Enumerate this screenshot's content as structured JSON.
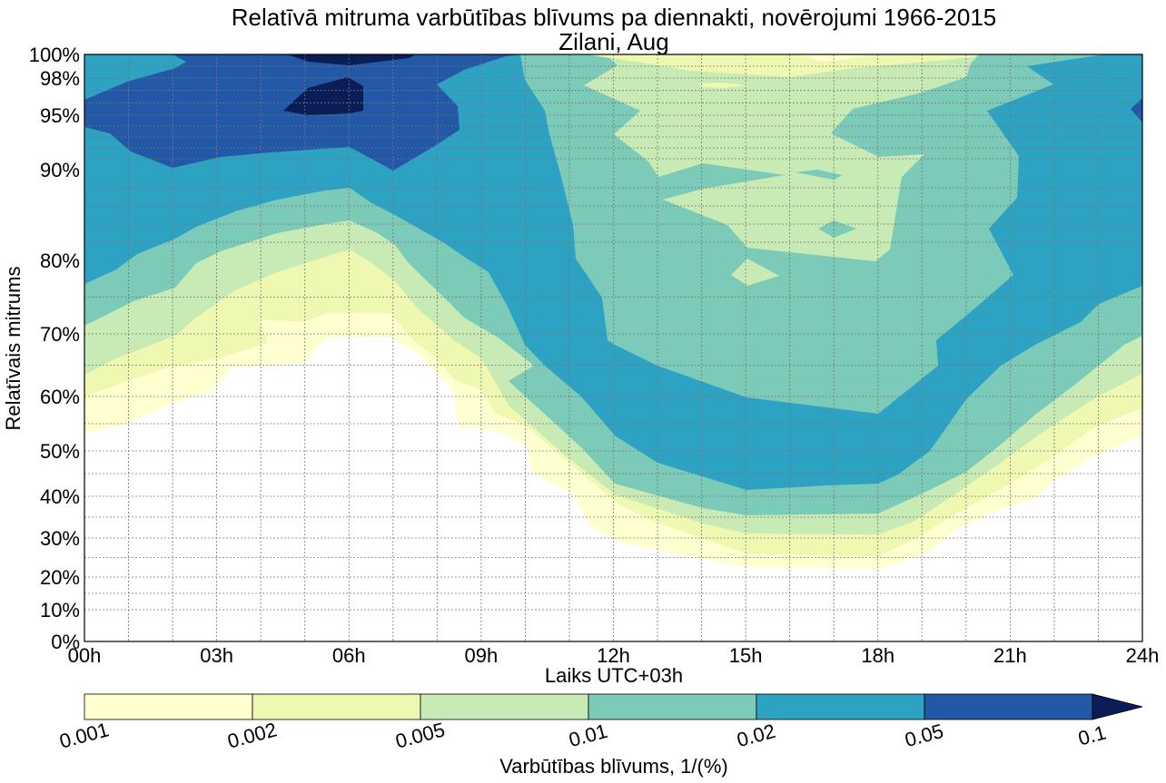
{
  "chart_data": {
    "type": "contour",
    "title": "Relatīvā mitruma varbūtības blīvums pa diennakti, novērojumi 1966-2015",
    "subtitle": "Zilani, Aug",
    "xlabel": "Laiks UTC+03h",
    "ylabel": "Relatīvais mitrums",
    "xlim": [
      0,
      24
    ],
    "ylim": [
      0,
      100
    ],
    "x_ticks": [
      {
        "value": 0,
        "label": "00h"
      },
      {
        "value": 3,
        "label": "03h"
      },
      {
        "value": 6,
        "label": "06h"
      },
      {
        "value": 9,
        "label": "09h"
      },
      {
        "value": 12,
        "label": "12h"
      },
      {
        "value": 15,
        "label": "15h"
      },
      {
        "value": 18,
        "label": "18h"
      },
      {
        "value": 21,
        "label": "21h"
      },
      {
        "value": 24,
        "label": "24h"
      }
    ],
    "y_ticks": [
      {
        "value": 100,
        "label": "100%"
      },
      {
        "value": 98,
        "label": "98%"
      },
      {
        "value": 95,
        "label": "95%"
      },
      {
        "value": 90,
        "label": "90%"
      },
      {
        "value": 80,
        "label": "80%"
      },
      {
        "value": 70,
        "label": "70%"
      },
      {
        "value": 60,
        "label": "60%"
      },
      {
        "value": 50,
        "label": "50%"
      },
      {
        "value": 40,
        "label": "40%"
      },
      {
        "value": 30,
        "label": "30%"
      },
      {
        "value": 20,
        "label": "20%"
      },
      {
        "value": 10,
        "label": "10%"
      },
      {
        "value": 0,
        "label": "0%"
      }
    ],
    "grid": true,
    "colorbar": {
      "label": "Varbūtības blīvums, 1/(%)",
      "levels": [
        "0.001",
        "0.002",
        "0.005",
        "0.01",
        "0.02",
        "0.05",
        "0.1"
      ],
      "colors": [
        "#ffffcf",
        "#eef8b1",
        "#c8eab5",
        "#7ccbb9",
        "#2ea2c2",
        "#2358a6",
        "#0b1d56"
      ],
      "extend": "max",
      "placement": "bottom"
    }
  }
}
